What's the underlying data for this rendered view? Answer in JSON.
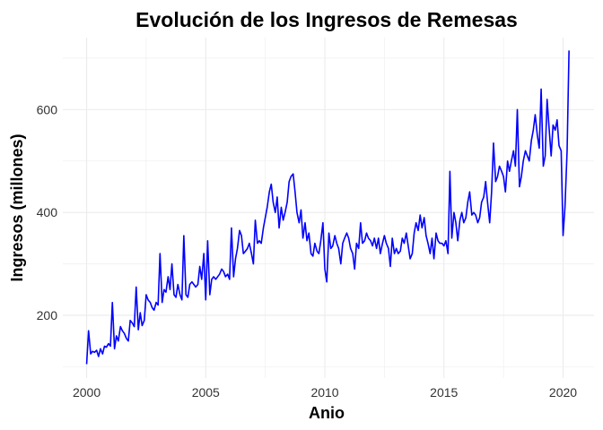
{
  "chart_data": {
    "type": "line",
    "title": "Evolución de los Ingresos de Remesas",
    "xlabel": "Anio",
    "ylabel": "Ingresos (millones)",
    "xlim": [
      1999.0,
      2021.3
    ],
    "ylim": [
      78,
      740
    ],
    "x_ticks": [
      2000,
      2005,
      2010,
      2015,
      2020
    ],
    "y_ticks": [
      200,
      400,
      600
    ],
    "grid": true,
    "line_color": "#0000FF",
    "grid_color": "#EBEBEB",
    "series": [
      {
        "x": [
          2000.0,
          2000.08,
          2000.17,
          2000.25,
          2000.33,
          2000.42,
          2000.5,
          2000.58,
          2000.67,
          2000.75,
          2000.83,
          2000.92,
          2001.0,
          2001.08,
          2001.17,
          2001.25,
          2001.33,
          2001.42,
          2001.5,
          2001.58,
          2001.67,
          2001.75,
          2001.83,
          2001.92,
          2002.0,
          2002.08,
          2002.17,
          2002.25,
          2002.33,
          2002.42,
          2002.5,
          2002.58,
          2002.67,
          2002.75,
          2002.83,
          2002.92,
          2003.0,
          2003.08,
          2003.17,
          2003.25,
          2003.33,
          2003.42,
          2003.5,
          2003.58,
          2003.67,
          2003.75,
          2003.83,
          2003.92,
          2004.0,
          2004.08,
          2004.17,
          2004.25,
          2004.33,
          2004.42,
          2004.5,
          2004.58,
          2004.67,
          2004.75,
          2004.83,
          2004.92,
          2005.0,
          2005.08,
          2005.17,
          2005.25,
          2005.33,
          2005.42,
          2005.5,
          2005.58,
          2005.67,
          2005.75,
          2005.83,
          2005.92,
          2006.0,
          2006.08,
          2006.17,
          2006.25,
          2006.33,
          2006.42,
          2006.5,
          2006.58,
          2006.67,
          2006.75,
          2006.83,
          2006.92,
          2007.0,
          2007.08,
          2007.17,
          2007.25,
          2007.33,
          2007.42,
          2007.5,
          2007.58,
          2007.67,
          2007.75,
          2007.83,
          2007.92,
          2008.0,
          2008.08,
          2008.17,
          2008.25,
          2008.33,
          2008.42,
          2008.5,
          2008.58,
          2008.67,
          2008.75,
          2008.83,
          2008.92,
          2009.0,
          2009.08,
          2009.17,
          2009.25,
          2009.33,
          2009.42,
          2009.5,
          2009.58,
          2009.67,
          2009.75,
          2009.83,
          2009.92,
          2010.0,
          2010.08,
          2010.17,
          2010.25,
          2010.33,
          2010.42,
          2010.5,
          2010.58,
          2010.67,
          2010.75,
          2010.83,
          2010.92,
          2011.0,
          2011.08,
          2011.17,
          2011.25,
          2011.33,
          2011.42,
          2011.5,
          2011.58,
          2011.67,
          2011.75,
          2011.83,
          2011.92,
          2012.0,
          2012.08,
          2012.17,
          2012.25,
          2012.33,
          2012.42,
          2012.5,
          2012.58,
          2012.67,
          2012.75,
          2012.83,
          2012.92,
          2013.0,
          2013.08,
          2013.17,
          2013.25,
          2013.33,
          2013.42,
          2013.5,
          2013.58,
          2013.67,
          2013.75,
          2013.83,
          2013.92,
          2014.0,
          2014.08,
          2014.17,
          2014.25,
          2014.33,
          2014.42,
          2014.5,
          2014.58,
          2014.67,
          2014.75,
          2014.83,
          2014.92,
          2015.0,
          2015.08,
          2015.17,
          2015.25,
          2015.33,
          2015.42,
          2015.5,
          2015.58,
          2015.67,
          2015.75,
          2015.83,
          2015.92,
          2016.0,
          2016.08,
          2016.17,
          2016.25,
          2016.33,
          2016.42,
          2016.5,
          2016.58,
          2016.67,
          2016.75,
          2016.83,
          2016.92,
          2017.0,
          2017.08,
          2017.17,
          2017.25,
          2017.33,
          2017.42,
          2017.5,
          2017.58,
          2017.67,
          2017.75,
          2017.83,
          2017.92,
          2018.0,
          2018.08,
          2018.17,
          2018.25,
          2018.33,
          2018.42,
          2018.5,
          2018.58,
          2018.67,
          2018.75,
          2018.83,
          2018.92,
          2019.0,
          2019.08,
          2019.17,
          2019.25,
          2019.33,
          2019.42,
          2019.5,
          2019.58,
          2019.67,
          2019.75,
          2019.83,
          2019.92,
          2020.0,
          2020.08,
          2020.17,
          2020.25
        ],
        "values": [
          105,
          170,
          125,
          130,
          128,
          132,
          120,
          135,
          125,
          140,
          138,
          145,
          140,
          225,
          135,
          160,
          150,
          178,
          170,
          165,
          155,
          150,
          190,
          185,
          178,
          255,
          172,
          205,
          180,
          190,
          240,
          230,
          225,
          215,
          210,
          225,
          220,
          320,
          225,
          250,
          245,
          275,
          250,
          300,
          240,
          235,
          260,
          240,
          230,
          355,
          240,
          235,
          260,
          265,
          260,
          255,
          260,
          295,
          270,
          320,
          230,
          345,
          240,
          270,
          275,
          270,
          275,
          280,
          290,
          285,
          275,
          280,
          270,
          370,
          275,
          310,
          330,
          365,
          355,
          320,
          325,
          330,
          340,
          320,
          300,
          385,
          340,
          345,
          340,
          370,
          390,
          410,
          440,
          455,
          420,
          400,
          430,
          370,
          410,
          385,
          400,
          420,
          460,
          470,
          475,
          440,
          400,
          380,
          405,
          350,
          380,
          345,
          360,
          320,
          315,
          340,
          325,
          320,
          345,
          380,
          290,
          265,
          360,
          330,
          335,
          355,
          340,
          330,
          300,
          340,
          350,
          360,
          350,
          330,
          320,
          290,
          340,
          330,
          380,
          340,
          345,
          360,
          350,
          345,
          335,
          350,
          330,
          350,
          320,
          340,
          355,
          340,
          330,
          295,
          350,
          320,
          330,
          320,
          325,
          350,
          340,
          360,
          335,
          310,
          320,
          360,
          380,
          365,
          395,
          370,
          390,
          355,
          340,
          320,
          350,
          310,
          360,
          345,
          340,
          340,
          335,
          345,
          320,
          480,
          350,
          400,
          380,
          345,
          385,
          400,
          380,
          390,
          420,
          440,
          395,
          400,
          395,
          380,
          390,
          420,
          430,
          460,
          420,
          380,
          440,
          535,
          460,
          470,
          490,
          480,
          470,
          440,
          500,
          480,
          500,
          520,
          490,
          600,
          450,
          470,
          500,
          520,
          510,
          500,
          540,
          560,
          590,
          550,
          525,
          640,
          490,
          510,
          620,
          560,
          510,
          570,
          560,
          580,
          530,
          520,
          355,
          410,
          520,
          715
        ]
      }
    ]
  }
}
